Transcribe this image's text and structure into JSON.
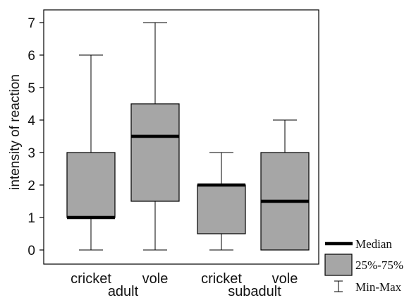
{
  "chart_data": {
    "type": "box",
    "ylabel": "intensity of reaction",
    "ylim": [
      0,
      7
    ],
    "yticks": [
      "0",
      "1",
      "2",
      "3",
      "4",
      "5",
      "6",
      "7"
    ],
    "categories": [
      "cricket",
      "vole",
      "cricket",
      "vole"
    ],
    "groups": [
      {
        "label": "adult",
        "categories": [
          0,
          1
        ]
      },
      {
        "label": "subadult",
        "categories": [
          2,
          3
        ]
      }
    ],
    "boxes": [
      {
        "category": "cricket",
        "group": "adult",
        "min": 0,
        "q1": 1,
        "median": 1,
        "q3": 3,
        "max": 6
      },
      {
        "category": "vole",
        "group": "adult",
        "min": 0,
        "q1": 1.5,
        "median": 3.5,
        "q3": 4.5,
        "max": 7
      },
      {
        "category": "cricket",
        "group": "subadult",
        "min": 0,
        "q1": 0.5,
        "median": 2,
        "q3": 2,
        "max": 3
      },
      {
        "category": "vole",
        "group": "subadult",
        "min": 0,
        "q1": 0,
        "median": 1.5,
        "q3": 3,
        "max": 4
      }
    ],
    "legend": {
      "position": "bottom-right",
      "items": [
        {
          "label": "Median",
          "symbol": "median-line"
        },
        {
          "label": "25%-75%",
          "symbol": "box"
        },
        {
          "label": "Min-Max",
          "symbol": "whisker"
        }
      ]
    },
    "colors": {
      "box_fill": "#a6a6a6",
      "stroke": "#000000",
      "median": "#000000"
    },
    "grid": false
  }
}
